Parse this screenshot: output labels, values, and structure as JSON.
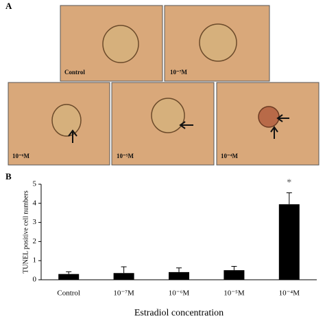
{
  "panels": {
    "a": {
      "label": "A",
      "images": [
        "Control",
        "10⁻⁷M",
        "10⁻⁶M",
        "10⁻⁵M",
        "10⁻⁴M"
      ]
    },
    "b": {
      "label": "B"
    }
  },
  "chart_data": {
    "type": "bar",
    "ylabel": "TUNEL positive cell numbers",
    "xlabel": "Estradiol concentration",
    "categories": [
      "Control",
      "10⁻⁷M",
      "10⁻⁶M",
      "10⁻⁵M",
      "10⁻⁴M"
    ],
    "values": [
      0.3,
      0.35,
      0.4,
      0.5,
      3.95
    ],
    "errors": [
      0.12,
      0.33,
      0.22,
      0.2,
      0.6
    ],
    "color": "#000000",
    "ylim": [
      0,
      5
    ],
    "yticks": [
      0,
      1,
      2,
      3,
      4,
      5
    ],
    "annotations": [
      {
        "text": "*",
        "category": 4
      }
    ]
  }
}
